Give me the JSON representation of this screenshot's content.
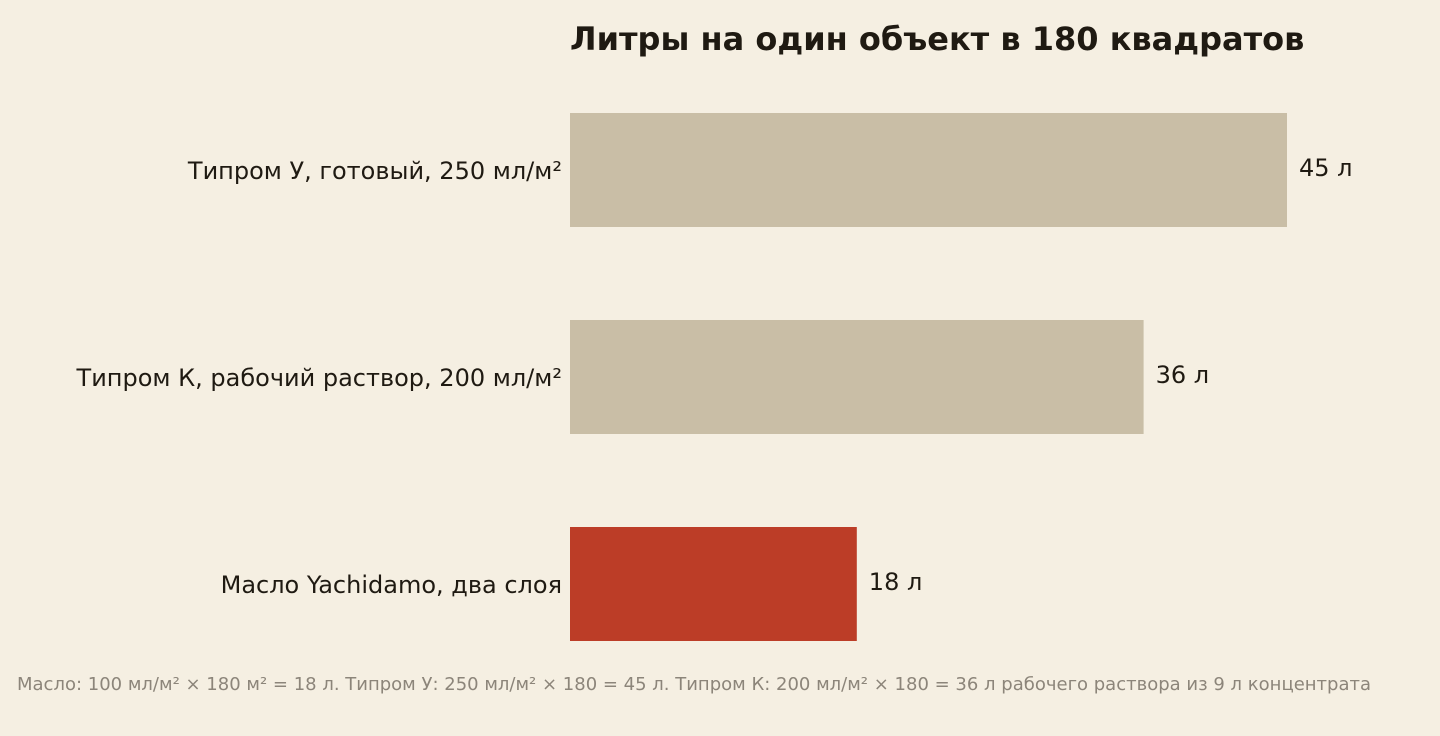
{
  "chart_data": {
    "type": "bar",
    "orientation": "horizontal",
    "title": "Литры на один объект в 180 квадратов",
    "categories": [
      "Типром У, готовый, 250 мл/м²",
      "Типром К, рабочий раствор, 200 мл/м²",
      "Масло Yachidamo, два слоя"
    ],
    "values": [
      45,
      36,
      18
    ],
    "value_labels": [
      "45 л",
      "36 л",
      "18 л"
    ],
    "colors": [
      "#c9bea6",
      "#c9bea6",
      "#bc3d27"
    ],
    "note": "Масло: 100 мл/м² × 180 м² = 18 л. Типром У: 250 мл/м² × 180 = 45 л. Типром К: 200 мл/м² × 180 = 36 л рабочего раствора из 9 л концентрата"
  }
}
